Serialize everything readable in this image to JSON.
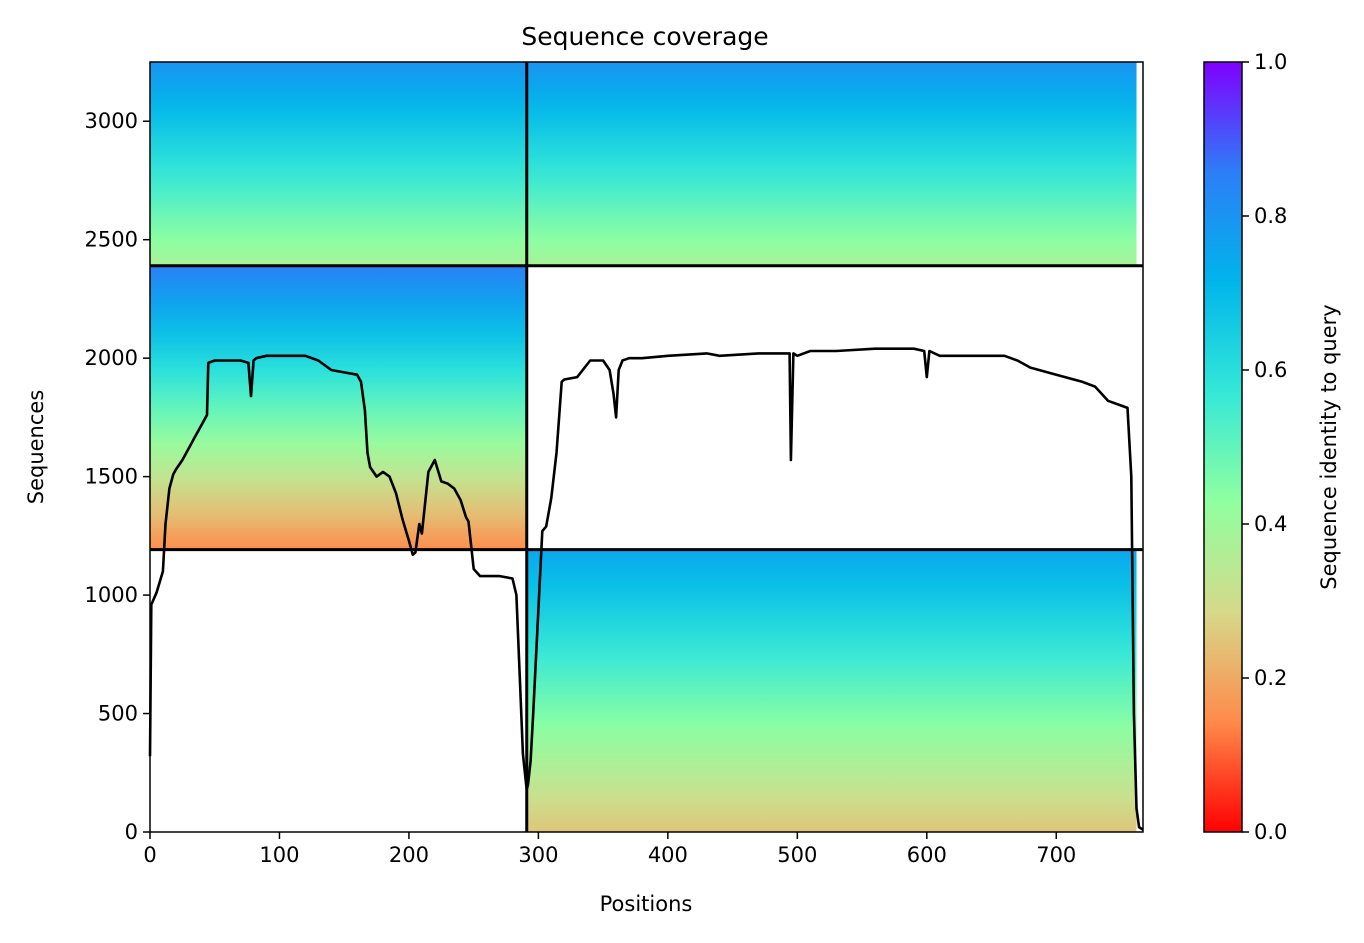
{
  "chart_data": {
    "type": "heatmap",
    "title": "Sequence coverage",
    "xlabel": "Positions",
    "ylabel": "Sequences",
    "xlim": [
      0,
      767
    ],
    "ylim": [
      0,
      3250
    ],
    "xticks": [
      0,
      100,
      200,
      300,
      400,
      500,
      600,
      700
    ],
    "yticks": [
      0,
      500,
      1000,
      1500,
      2000,
      2500,
      3000
    ],
    "grid": false,
    "colorbar": {
      "label": "Sequence identity to query",
      "range": [
        0,
        1
      ],
      "ticks": [
        "0.0",
        "0.2",
        "0.4",
        "0.6",
        "0.8",
        "1.0"
      ],
      "colormap": "rainbow_r",
      "stops": [
        "#ff0000",
        "#ff8a4a",
        "#d6d98a",
        "#90ffa0",
        "#34e8d8",
        "#00b5eb",
        "#2c7ef7",
        "#8000ff"
      ]
    },
    "domain_boundaries": {
      "x": [
        291
      ],
      "y": [
        1192,
        2390
      ]
    },
    "coverage_blocks": [
      {
        "x": [
          0,
          291
        ],
        "y": [
          1192,
          2390
        ],
        "identity_top": 0.85,
        "identity_bottom": 0.15,
        "coverage": "partial"
      },
      {
        "x": [
          0,
          291
        ],
        "y": [
          2390,
          3250
        ],
        "identity_top": 0.8,
        "identity_bottom": 0.38,
        "coverage": "partial"
      },
      {
        "x": [
          291,
          762
        ],
        "y": [
          2390,
          3250
        ],
        "identity_top": 0.8,
        "identity_bottom": 0.38,
        "coverage": "full"
      },
      {
        "x": [
          291,
          762
        ],
        "y": [
          0,
          1192
        ],
        "identity_top": 0.75,
        "identity_bottom": 0.25,
        "coverage": "full"
      }
    ],
    "coverage_line": {
      "x": [
        0,
        1,
        5,
        10,
        12,
        15,
        18,
        20,
        25,
        30,
        35,
        40,
        44,
        45,
        50,
        60,
        70,
        76,
        78,
        80,
        82,
        90,
        100,
        110,
        120,
        130,
        140,
        150,
        160,
        163,
        166,
        168,
        170,
        175,
        180,
        185,
        190,
        195,
        200,
        203,
        205,
        208,
        210,
        215,
        220,
        225,
        230,
        235,
        240,
        244,
        246,
        250,
        255,
        260,
        270,
        280,
        283,
        286,
        288,
        290,
        291,
        292,
        294,
        296,
        300,
        303,
        306,
        310,
        314,
        318,
        320,
        330,
        340,
        350,
        355,
        358,
        360,
        362,
        365,
        370,
        380,
        400,
        430,
        440,
        470,
        494,
        495,
        497,
        500,
        510,
        530,
        560,
        590,
        598,
        600,
        602,
        610,
        640,
        660,
        670,
        680,
        700,
        720,
        730,
        740,
        750,
        755,
        758,
        760,
        762,
        764,
        767
      ],
      "y": [
        320,
        960,
        1010,
        1100,
        1300,
        1450,
        1510,
        1530,
        1570,
        1620,
        1670,
        1720,
        1760,
        1980,
        1990,
        1990,
        1990,
        1980,
        1840,
        1990,
        2000,
        2010,
        2010,
        2010,
        2010,
        1990,
        1950,
        1940,
        1930,
        1900,
        1780,
        1600,
        1540,
        1500,
        1520,
        1500,
        1430,
        1320,
        1230,
        1170,
        1180,
        1300,
        1260,
        1520,
        1570,
        1480,
        1470,
        1450,
        1400,
        1330,
        1310,
        1110,
        1080,
        1080,
        1080,
        1070,
        1000,
        600,
        330,
        230,
        180,
        200,
        300,
        500,
        940,
        1270,
        1290,
        1410,
        1600,
        1900,
        1910,
        1920,
        1990,
        1990,
        1950,
        1850,
        1750,
        1950,
        1990,
        2000,
        2000,
        2010,
        2020,
        2010,
        2020,
        2020,
        1570,
        2020,
        2010,
        2030,
        2030,
        2040,
        2040,
        2030,
        1920,
        2030,
        2010,
        2010,
        2010,
        1990,
        1960,
        1930,
        1900,
        1880,
        1820,
        1800,
        1790,
        1500,
        500,
        100,
        20,
        10
      ]
    }
  }
}
